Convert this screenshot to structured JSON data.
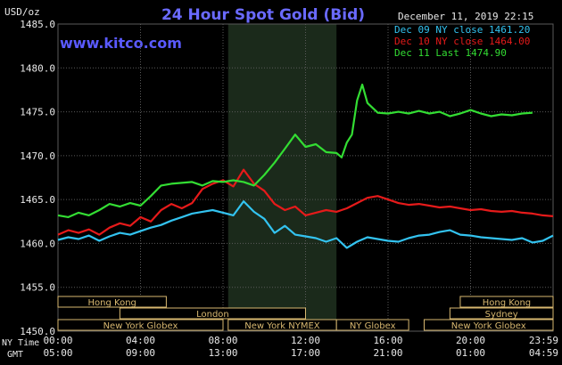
{
  "title": "24 Hour Spot Gold (Bid)",
  "site": "www.kitco.com",
  "timestamp": "December 11, 2019 22:15",
  "y_unit": "USD/oz",
  "time_labels": {
    "ny": "NY Time",
    "gmt": "GMT"
  },
  "colors": {
    "background": "#000000",
    "title": "#6a6aff",
    "site": "#5a5aff",
    "text": "#e8e8e8",
    "grid": "#5a5a5a",
    "shade": "#1b2a1b",
    "session_box": "#d8b870",
    "series_dec09": "#33c3f0",
    "series_dec10": "#e61a1a",
    "series_dec11": "#33dd33"
  },
  "legend": [
    {
      "label": "Dec 09 NY close 1461.20",
      "color": "#33c3f0"
    },
    {
      "label": "Dec 10 NY close 1464.00",
      "color": "#e61a1a"
    },
    {
      "label": "Dec 11 Last 1474.90",
      "color": "#33dd33"
    }
  ],
  "sessions": [
    {
      "label": "Hong Kong",
      "start": 0.0,
      "end": 5.25,
      "row": 0
    },
    {
      "label": "Hong Kong",
      "start": 19.5,
      "end": 24.0,
      "row": 0
    },
    {
      "label": "London",
      "start": 3.0,
      "end": 12.0,
      "row": 1
    },
    {
      "label": "Sydney",
      "start": 19.0,
      "end": 24.0,
      "row": 1
    },
    {
      "label": "New York Globex",
      "start": 0.0,
      "end": 8.0,
      "row": 2
    },
    {
      "label": "New York NYMEX",
      "start": 8.25,
      "end": 13.5,
      "row": 2
    },
    {
      "label": "NY Globex",
      "start": 13.5,
      "end": 17.0,
      "row": 2
    },
    {
      "label": "New York Globex",
      "start": 17.75,
      "end": 24.0,
      "row": 2
    }
  ],
  "chart_data": {
    "type": "line",
    "title": "24 Hour Spot Gold (Bid)",
    "ylabel": "USD/oz",
    "xlim": [
      0,
      24
    ],
    "ylim": [
      1450,
      1485
    ],
    "yticks": [
      1450,
      1455,
      1460,
      1465,
      1470,
      1475,
      1480,
      1485
    ],
    "ytick_labels": [
      "1450.0",
      "1455.0",
      "1460.0",
      "1465.0",
      "1470.0",
      "1475.0",
      "1480.0",
      "1485.0"
    ],
    "xticks": [
      0,
      4,
      8,
      12,
      16,
      20,
      23.983
    ],
    "xtick_labels_ny": [
      "00:00",
      "04:00",
      "08:00",
      "12:00",
      "16:00",
      "20:00",
      "23:59"
    ],
    "xtick_labels_gmt": [
      "05:00",
      "09:00",
      "13:00",
      "17:00",
      "21:00",
      "01:00",
      "04:59"
    ],
    "shaded_range": [
      8.25,
      13.5
    ],
    "grid": true,
    "legend_position": "top-right",
    "series": [
      {
        "name": "Dec 09 NY close 1461.20",
        "color": "#33c3f0",
        "x": [
          0,
          0.5,
          1,
          1.5,
          2,
          2.5,
          3,
          3.5,
          4,
          4.5,
          5,
          5.5,
          6,
          6.5,
          7,
          7.5,
          8,
          8.5,
          9,
          9.5,
          10,
          10.5,
          11,
          11.5,
          12,
          12.5,
          13,
          13.5,
          14,
          14.5,
          15,
          15.5,
          16,
          16.5,
          17,
          17.5,
          18,
          18.5,
          19,
          19.5,
          20,
          20.5,
          21,
          21.5,
          22,
          22.5,
          23,
          23.5,
          24
        ],
        "y": [
          1460.4,
          1460.7,
          1460.5,
          1460.9,
          1460.3,
          1460.8,
          1461.2,
          1461.0,
          1461.4,
          1461.8,
          1462.1,
          1462.6,
          1463.0,
          1463.4,
          1463.6,
          1463.8,
          1463.5,
          1463.2,
          1464.8,
          1463.6,
          1462.8,
          1461.2,
          1462.0,
          1461.0,
          1460.8,
          1460.6,
          1460.2,
          1460.6,
          1459.5,
          1460.2,
          1460.7,
          1460.5,
          1460.3,
          1460.2,
          1460.6,
          1460.9,
          1461.0,
          1461.3,
          1461.5,
          1461.0,
          1460.9,
          1460.7,
          1460.6,
          1460.5,
          1460.4,
          1460.6,
          1460.1,
          1460.3,
          1460.9
        ]
      },
      {
        "name": "Dec 10 NY close 1464.00",
        "color": "#e61a1a",
        "x": [
          0,
          0.5,
          1,
          1.5,
          2,
          2.5,
          3,
          3.5,
          4,
          4.5,
          5,
          5.5,
          6,
          6.5,
          7,
          7.5,
          8,
          8.5,
          9,
          9.5,
          10,
          10.5,
          11,
          11.5,
          12,
          12.5,
          13,
          13.5,
          14,
          14.5,
          15,
          15.5,
          16,
          16.5,
          17,
          17.5,
          18,
          18.5,
          19,
          19.5,
          20,
          20.5,
          21,
          21.5,
          22,
          22.5,
          23,
          23.5,
          24
        ],
        "y": [
          1461.0,
          1461.5,
          1461.2,
          1461.6,
          1461.0,
          1461.8,
          1462.3,
          1462.0,
          1463.0,
          1462.5,
          1463.8,
          1464.5,
          1464.0,
          1464.6,
          1466.2,
          1466.8,
          1467.2,
          1466.5,
          1468.4,
          1466.8,
          1466.0,
          1464.5,
          1463.8,
          1464.2,
          1463.2,
          1463.5,
          1463.8,
          1463.6,
          1464.0,
          1464.6,
          1465.2,
          1465.4,
          1465.0,
          1464.6,
          1464.4,
          1464.5,
          1464.3,
          1464.1,
          1464.2,
          1464.0,
          1463.8,
          1463.9,
          1463.7,
          1463.6,
          1463.7,
          1463.5,
          1463.4,
          1463.2,
          1463.1
        ]
      },
      {
        "name": "Dec 11 Last 1474.90",
        "color": "#33dd33",
        "x": [
          0,
          0.5,
          1,
          1.5,
          2,
          2.5,
          3,
          3.5,
          4,
          4.5,
          5,
          5.5,
          6,
          6.5,
          7,
          7.5,
          8,
          8.5,
          9,
          9.5,
          10,
          10.5,
          11,
          11.5,
          12,
          12.5,
          13,
          13.5,
          13.75,
          14,
          14.25,
          14.5,
          14.75,
          15,
          15.5,
          16,
          16.5,
          17,
          17.5,
          18,
          18.5,
          19,
          19.5,
          20,
          20.5,
          21,
          21.5,
          22,
          22.5,
          23
        ],
        "y": [
          1463.2,
          1463.0,
          1463.5,
          1463.2,
          1463.8,
          1464.5,
          1464.2,
          1464.6,
          1464.3,
          1465.4,
          1466.6,
          1466.8,
          1466.9,
          1467.0,
          1466.6,
          1467.1,
          1467.0,
          1467.2,
          1467.0,
          1466.6,
          1467.8,
          1469.2,
          1470.8,
          1472.4,
          1471.0,
          1471.3,
          1470.4,
          1470.3,
          1469.8,
          1471.5,
          1472.4,
          1476.3,
          1478.1,
          1476.0,
          1474.9,
          1474.8,
          1475.0,
          1474.8,
          1475.1,
          1474.8,
          1475.0,
          1474.5,
          1474.8,
          1475.2,
          1474.8,
          1474.5,
          1474.7,
          1474.6,
          1474.8,
          1474.9
        ]
      }
    ]
  }
}
